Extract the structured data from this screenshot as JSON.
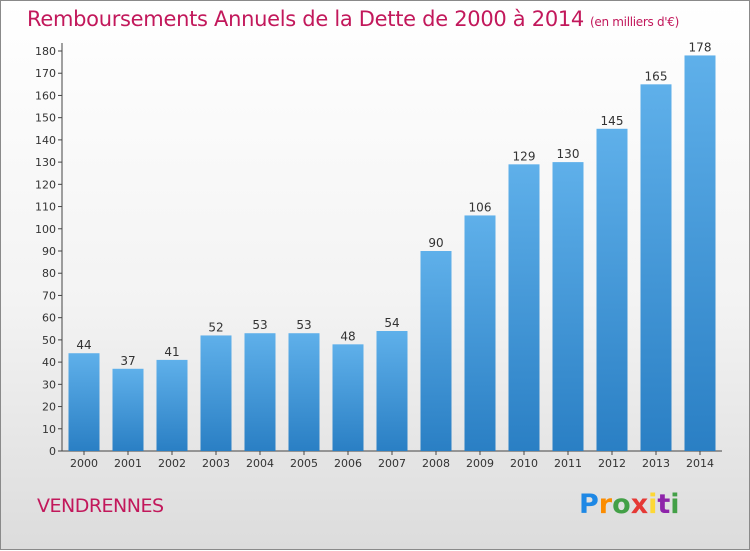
{
  "header": {
    "title": "Remboursements Annuels de la Dette de 2000 à 2014",
    "unit": "(en milliers d'€)"
  },
  "footer": {
    "city": "VENDRENNES",
    "logo_letters": [
      "P",
      "r",
      "o",
      "x",
      "i",
      "t",
      "i"
    ]
  },
  "colors": {
    "bar_light": "#5fb0ea",
    "bar_dark": "#2a7fc4",
    "title": "#c2185b",
    "logo": [
      "#1e88e5",
      "#fb8c00",
      "#43a047",
      "#e53935",
      "#fdd835",
      "#8e24aa",
      "#43a047"
    ]
  },
  "chart_data": {
    "type": "bar",
    "title": "Remboursements Annuels de la Dette de 2000 à 2014",
    "categories": [
      "2000",
      "2001",
      "2002",
      "2003",
      "2004",
      "2005",
      "2006",
      "2007",
      "2008",
      "2009",
      "2010",
      "2011",
      "2012",
      "2013",
      "2014"
    ],
    "values": [
      44,
      37,
      41,
      52,
      53,
      53,
      48,
      54,
      90,
      106,
      129,
      130,
      145,
      165,
      178
    ],
    "ylim": [
      0,
      180
    ],
    "yticks": [
      0,
      10,
      20,
      30,
      40,
      50,
      60,
      70,
      80,
      90,
      100,
      110,
      120,
      130,
      140,
      150,
      160,
      170,
      180
    ],
    "grid": false,
    "data_labels": true
  }
}
